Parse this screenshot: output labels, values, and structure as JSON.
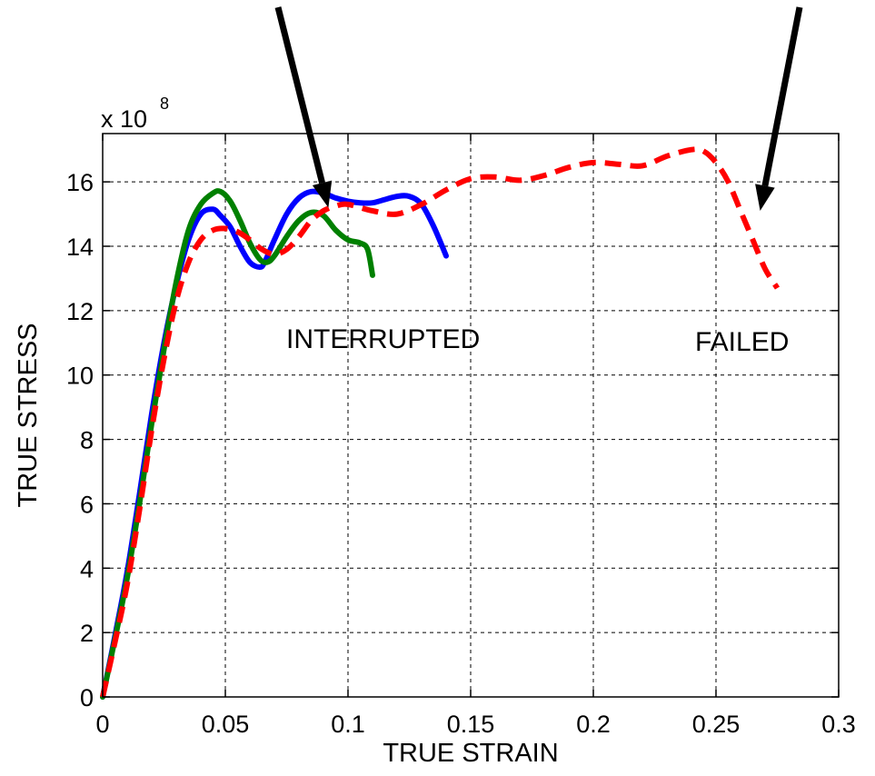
{
  "chart_data": {
    "type": "line",
    "xlabel": "TRUE STRAIN",
    "ylabel": "TRUE STRESS",
    "scale_label_base": "x 10",
    "scale_label_exp": "8",
    "xlim": [
      0,
      0.3
    ],
    "ylim": [
      0,
      17.5
    ],
    "xticks": [
      0,
      0.05,
      0.1,
      0.15,
      0.2,
      0.25,
      0.3
    ],
    "xtick_labels": [
      "0",
      "0.05",
      "0.1",
      "0.15",
      "0.2",
      "0.25",
      "0.3"
    ],
    "yticks": [
      0,
      2,
      4,
      6,
      8,
      10,
      12,
      14,
      16
    ],
    "ytick_labels": [
      "0",
      "2",
      "4",
      "6",
      "8",
      "10",
      "12",
      "14",
      "16"
    ],
    "grid": true,
    "series": [
      {
        "color": "#0000ff",
        "style": "solid",
        "x": [
          0,
          0.005,
          0.01,
          0.015,
          0.02,
          0.025,
          0.03,
          0.035,
          0.04,
          0.045,
          0.048,
          0.052,
          0.056,
          0.06,
          0.064,
          0.066,
          0.07,
          0.075,
          0.08,
          0.085,
          0.09,
          0.095,
          0.1,
          0.105,
          0.11,
          0.115,
          0.12,
          0.125,
          0.13,
          0.135,
          0.14
        ],
        "y": [
          0,
          1.9,
          3.9,
          6.3,
          8.8,
          11.0,
          12.8,
          14.2,
          15.0,
          15.15,
          14.95,
          14.6,
          14.0,
          13.5,
          13.35,
          13.5,
          14.2,
          15.0,
          15.5,
          15.7,
          15.65,
          15.5,
          15.4,
          15.35,
          15.35,
          15.45,
          15.55,
          15.55,
          15.3,
          14.6,
          13.7
        ]
      },
      {
        "color": "#008000",
        "style": "solid",
        "x": [
          0,
          0.005,
          0.01,
          0.015,
          0.02,
          0.025,
          0.03,
          0.035,
          0.04,
          0.045,
          0.048,
          0.052,
          0.056,
          0.06,
          0.064,
          0.067,
          0.07,
          0.075,
          0.08,
          0.085,
          0.09,
          0.095,
          0.1,
          0.105,
          0.108,
          0.11
        ],
        "y": [
          0,
          1.8,
          3.7,
          6.0,
          8.5,
          10.8,
          12.9,
          14.5,
          15.3,
          15.65,
          15.7,
          15.4,
          14.8,
          14.1,
          13.6,
          13.5,
          13.7,
          14.3,
          14.8,
          15.05,
          14.95,
          14.5,
          14.2,
          14.1,
          13.9,
          13.1
        ]
      },
      {
        "color": "#ff0000",
        "style": "dashed",
        "x": [
          0,
          0.005,
          0.01,
          0.015,
          0.02,
          0.025,
          0.03,
          0.035,
          0.04,
          0.045,
          0.05,
          0.055,
          0.06,
          0.065,
          0.07,
          0.075,
          0.08,
          0.085,
          0.09,
          0.095,
          0.1,
          0.11,
          0.12,
          0.13,
          0.14,
          0.15,
          0.16,
          0.17,
          0.18,
          0.19,
          0.2,
          0.21,
          0.22,
          0.23,
          0.24,
          0.245,
          0.25,
          0.255,
          0.26,
          0.265,
          0.27,
          0.275
        ],
        "y": [
          0,
          1.7,
          3.5,
          5.8,
          8.3,
          10.5,
          12.3,
          13.5,
          14.2,
          14.5,
          14.55,
          14.45,
          14.2,
          13.9,
          13.75,
          13.9,
          14.3,
          14.8,
          15.1,
          15.25,
          15.3,
          15.1,
          15.0,
          15.3,
          15.75,
          16.1,
          16.15,
          16.05,
          16.2,
          16.45,
          16.6,
          16.55,
          16.5,
          16.8,
          17.0,
          16.95,
          16.6,
          16.0,
          15.1,
          14.2,
          13.3,
          12.7
        ]
      }
    ],
    "annotations": [
      {
        "text": "INTERRUPTED",
        "arrow_tip": [
          0.092,
          15.2
        ]
      },
      {
        "text": "FAILED",
        "arrow_tip": [
          0.268,
          15.1
        ]
      }
    ]
  }
}
